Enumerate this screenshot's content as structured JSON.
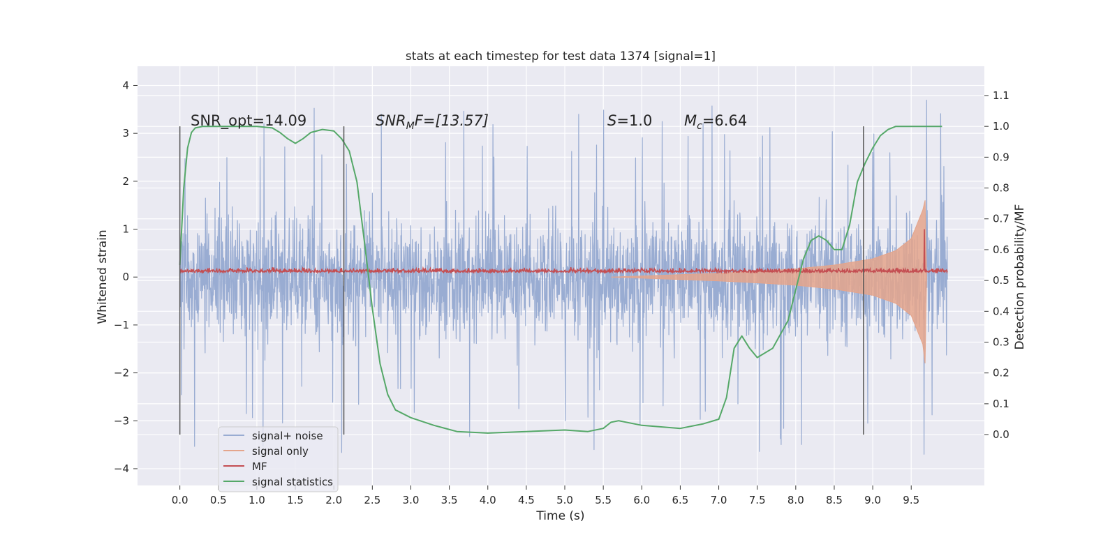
{
  "chart_data": {
    "type": "line",
    "title": "stats at each timestep for test data 1374 [signal=1]",
    "xlabel": "Time (s)",
    "ylabel": "Whitened strain",
    "y2label": "Detection probability/MF",
    "xlim": [
      -0.55,
      10.45
    ],
    "ylim": [
      -4.35,
      4.4
    ],
    "y2lim": [
      -0.165,
      1.195
    ],
    "x_ticks": [
      "0.0",
      "0.5",
      "1.0",
      "1.5",
      "2.0",
      "2.5",
      "3.0",
      "3.5",
      "4.0",
      "4.5",
      "5.0",
      "5.5",
      "6.0",
      "6.5",
      "7.0",
      "7.5",
      "8.0",
      "8.5",
      "9.0",
      "9.5"
    ],
    "y_ticks": [
      "4",
      "3",
      "2",
      "1",
      "0",
      "−1",
      "−2",
      "−3",
      "−4"
    ],
    "y2_ticks": [
      "1.1",
      "1.0",
      "0.9",
      "0.8",
      "0.7",
      "0.6",
      "0.5",
      "0.4",
      "0.3",
      "0.2",
      "0.1",
      "0.0"
    ],
    "grid": true,
    "legend_placement": "lower-left",
    "legend": [
      "signal+ noise",
      "signal only",
      "MF",
      "signal statistics"
    ],
    "colors": {
      "signal_noise": "#99acd2",
      "signal_only": "#e4a58c",
      "mf": "#c44e52",
      "statistics": "#55a868",
      "background": "#eaeaf2",
      "vline": "#555555"
    },
    "annotations": {
      "snr_opt": "SNR_opt=14.09",
      "snr_mf_sym": "SNR",
      "snr_mf_sub": "M",
      "snr_mf_val": "F=[13.57]",
      "s_sym": "S",
      "s_val": "=1.0",
      "mc_sym": "M",
      "mc_sub": "c",
      "mc_val": "=6.64"
    },
    "vlines_x": [
      0.0,
      2.13,
      8.88
    ],
    "signal_noise": {
      "x_range": [
        0.0,
        9.97
      ],
      "band_typical": [
        -1.3,
        1.3
      ],
      "peaks_max": 4.0,
      "peaks_min": -3.8
    },
    "signal_only": {
      "x_range": [
        5.6,
        9.7
      ],
      "envelope_points": [
        [
          5.6,
          0.0
        ],
        [
          6.5,
          0.05
        ],
        [
          7.0,
          0.08
        ],
        [
          7.5,
          0.12
        ],
        [
          8.0,
          0.17
        ],
        [
          8.5,
          0.25
        ],
        [
          9.0,
          0.38
        ],
        [
          9.3,
          0.55
        ],
        [
          9.5,
          0.8
        ],
        [
          9.65,
          1.4
        ],
        [
          9.68,
          1.6
        ],
        [
          9.7,
          0.0
        ]
      ]
    },
    "mf": {
      "x_range": [
        0.0,
        9.97
      ],
      "baseline": 0.1,
      "peak": {
        "x": 9.67,
        "y": 1.0
      }
    },
    "signal_statistics": {
      "points": [
        [
          0.0,
          0.55
        ],
        [
          0.05,
          0.8
        ],
        [
          0.1,
          0.93
        ],
        [
          0.15,
          0.98
        ],
        [
          0.2,
          0.995
        ],
        [
          0.3,
          1.0
        ],
        [
          0.6,
          1.0
        ],
        [
          1.0,
          1.0
        ],
        [
          1.2,
          0.995
        ],
        [
          1.3,
          0.98
        ],
        [
          1.4,
          0.96
        ],
        [
          1.5,
          0.945
        ],
        [
          1.6,
          0.96
        ],
        [
          1.7,
          0.98
        ],
        [
          1.85,
          0.99
        ],
        [
          2.0,
          0.985
        ],
        [
          2.1,
          0.96
        ],
        [
          2.2,
          0.92
        ],
        [
          2.3,
          0.82
        ],
        [
          2.4,
          0.62
        ],
        [
          2.5,
          0.41
        ],
        [
          2.6,
          0.23
        ],
        [
          2.7,
          0.13
        ],
        [
          2.8,
          0.08
        ],
        [
          3.0,
          0.055
        ],
        [
          3.3,
          0.03
        ],
        [
          3.6,
          0.01
        ],
        [
          4.0,
          0.005
        ],
        [
          4.5,
          0.01
        ],
        [
          5.0,
          0.015
        ],
        [
          5.3,
          0.01
        ],
        [
          5.5,
          0.02
        ],
        [
          5.6,
          0.04
        ],
        [
          5.7,
          0.045
        ],
        [
          6.0,
          0.03
        ],
        [
          6.5,
          0.02
        ],
        [
          6.8,
          0.035
        ],
        [
          7.0,
          0.05
        ],
        [
          7.1,
          0.12
        ],
        [
          7.2,
          0.28
        ],
        [
          7.3,
          0.32
        ],
        [
          7.4,
          0.28
        ],
        [
          7.5,
          0.25
        ],
        [
          7.7,
          0.28
        ],
        [
          7.9,
          0.37
        ],
        [
          8.0,
          0.47
        ],
        [
          8.1,
          0.57
        ],
        [
          8.2,
          0.63
        ],
        [
          8.3,
          0.645
        ],
        [
          8.4,
          0.63
        ],
        [
          8.5,
          0.6
        ],
        [
          8.6,
          0.6
        ],
        [
          8.7,
          0.68
        ],
        [
          8.8,
          0.82
        ],
        [
          8.9,
          0.88
        ],
        [
          9.0,
          0.93
        ],
        [
          9.1,
          0.97
        ],
        [
          9.2,
          0.99
        ],
        [
          9.3,
          1.0
        ],
        [
          9.5,
          1.0
        ],
        [
          9.9,
          1.0
        ]
      ]
    }
  }
}
